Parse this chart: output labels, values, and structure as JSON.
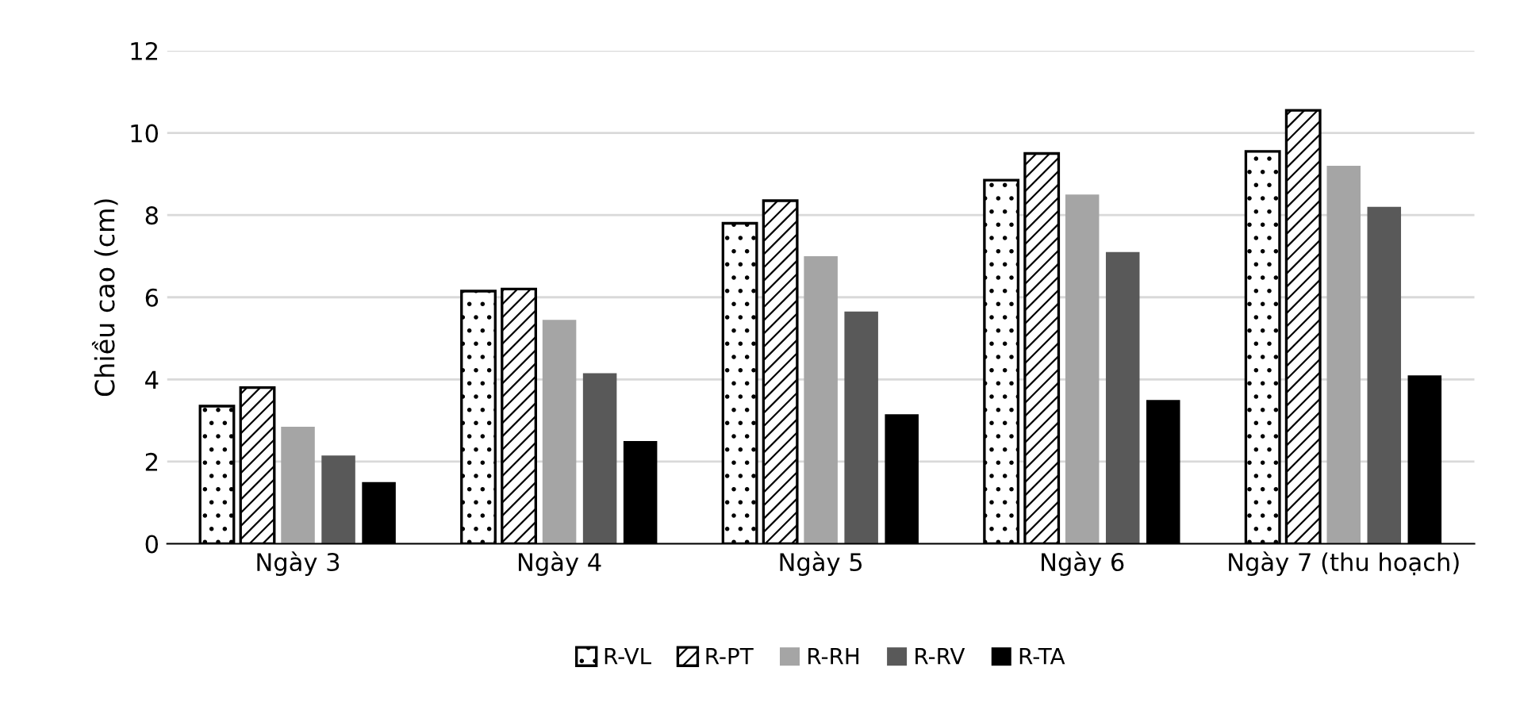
{
  "chart_data": {
    "type": "bar",
    "ylabel": "Chiều cao (cm)",
    "categories": [
      "Ngày 3",
      "Ngày 4",
      "Ngày 5",
      "Ngày 6",
      "Ngày 7 (thu hoạch)"
    ],
    "series": [
      {
        "name": "R-VL",
        "color": "#000000",
        "values": [
          3.35,
          6.15,
          7.8,
          8.85,
          9.55
        ]
      },
      {
        "name": "R-PT",
        "color": "#000000",
        "values": [
          3.8,
          6.2,
          8.35,
          9.5,
          10.55
        ]
      },
      {
        "name": "R-RH",
        "color": "#a5a5a5",
        "values": [
          2.85,
          5.45,
          7.0,
          8.5,
          9.2
        ]
      },
      {
        "name": "R-RV",
        "color": "#595959",
        "values": [
          2.15,
          4.15,
          5.65,
          7.1,
          8.2
        ]
      },
      {
        "name": "R-TA",
        "color": "#000000",
        "values": [
          1.5,
          2.5,
          3.15,
          3.5,
          4.1
        ]
      }
    ],
    "ylim": [
      0,
      12
    ],
    "yticks": [
      0,
      2,
      4,
      6,
      8,
      10,
      12
    ],
    "grid": "y",
    "legend": "bottom"
  }
}
